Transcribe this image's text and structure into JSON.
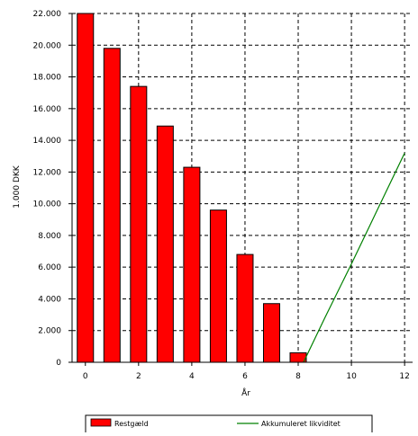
{
  "chart_data": {
    "type": "bar",
    "title": "",
    "xlabel": "År",
    "ylabel": "1.000 DKK",
    "ylim": [
      0,
      22000
    ],
    "xlim": [
      -0.5,
      12.3
    ],
    "grid": true,
    "legend_position": "bottom",
    "y_ticks": [
      "0",
      "2.000",
      "4.000",
      "6.000",
      "8.000",
      "10.000",
      "12.000",
      "14.000",
      "16.000",
      "18.000",
      "20.000",
      "22.000"
    ],
    "x_ticks": [
      "0",
      "2",
      "4",
      "6",
      "8",
      "10",
      "12"
    ],
    "series": [
      {
        "name": "Restgæld",
        "type": "bar",
        "color": "#ff0000",
        "x": [
          0,
          1,
          2,
          3,
          4,
          5,
          6,
          7,
          8
        ],
        "values": [
          22000,
          19800,
          17400,
          14900,
          12300,
          9600,
          6800,
          3700,
          600
        ]
      },
      {
        "name": "Akkumuleret likviditet",
        "type": "line",
        "color": "#008000",
        "x": [
          8.2,
          9,
          10,
          11,
          12
        ],
        "values": [
          0,
          2800,
          6200,
          9700,
          13200
        ]
      }
    ]
  }
}
